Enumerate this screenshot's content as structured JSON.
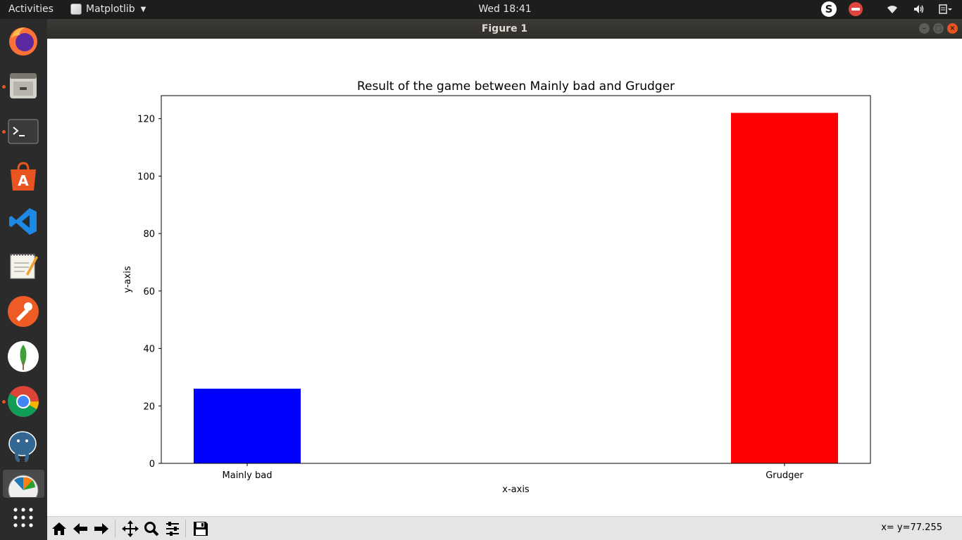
{
  "topbar": {
    "activities": "Activities",
    "app_name": "Matplotlib",
    "clock": "Wed 18:41",
    "tray_skype": "S"
  },
  "window": {
    "title": "Figure 1"
  },
  "dock": {
    "items": [
      "firefox-icon",
      "files-icon",
      "terminal-icon",
      "software-center-icon",
      "vscode-icon",
      "text-editor-icon",
      "postman-icon",
      "mongodb-icon",
      "chrome-icon",
      "postgresql-icon",
      "matplotlib-icon",
      "show-apps-icon"
    ]
  },
  "chart_data": {
    "type": "bar",
    "title": "Result of the game between Mainly bad and Grudger",
    "xlabel": "x-axis",
    "ylabel": "y-axis",
    "categories": [
      "Mainly bad",
      "Grudger"
    ],
    "values": [
      26,
      122
    ],
    "colors": [
      "#0000ff",
      "#ff0000"
    ],
    "ylim": [
      0,
      128
    ],
    "yticks": [
      0,
      20,
      40,
      60,
      80,
      100,
      120
    ],
    "grid": false
  },
  "toolbar": {
    "coords": "x= y=77.255"
  }
}
